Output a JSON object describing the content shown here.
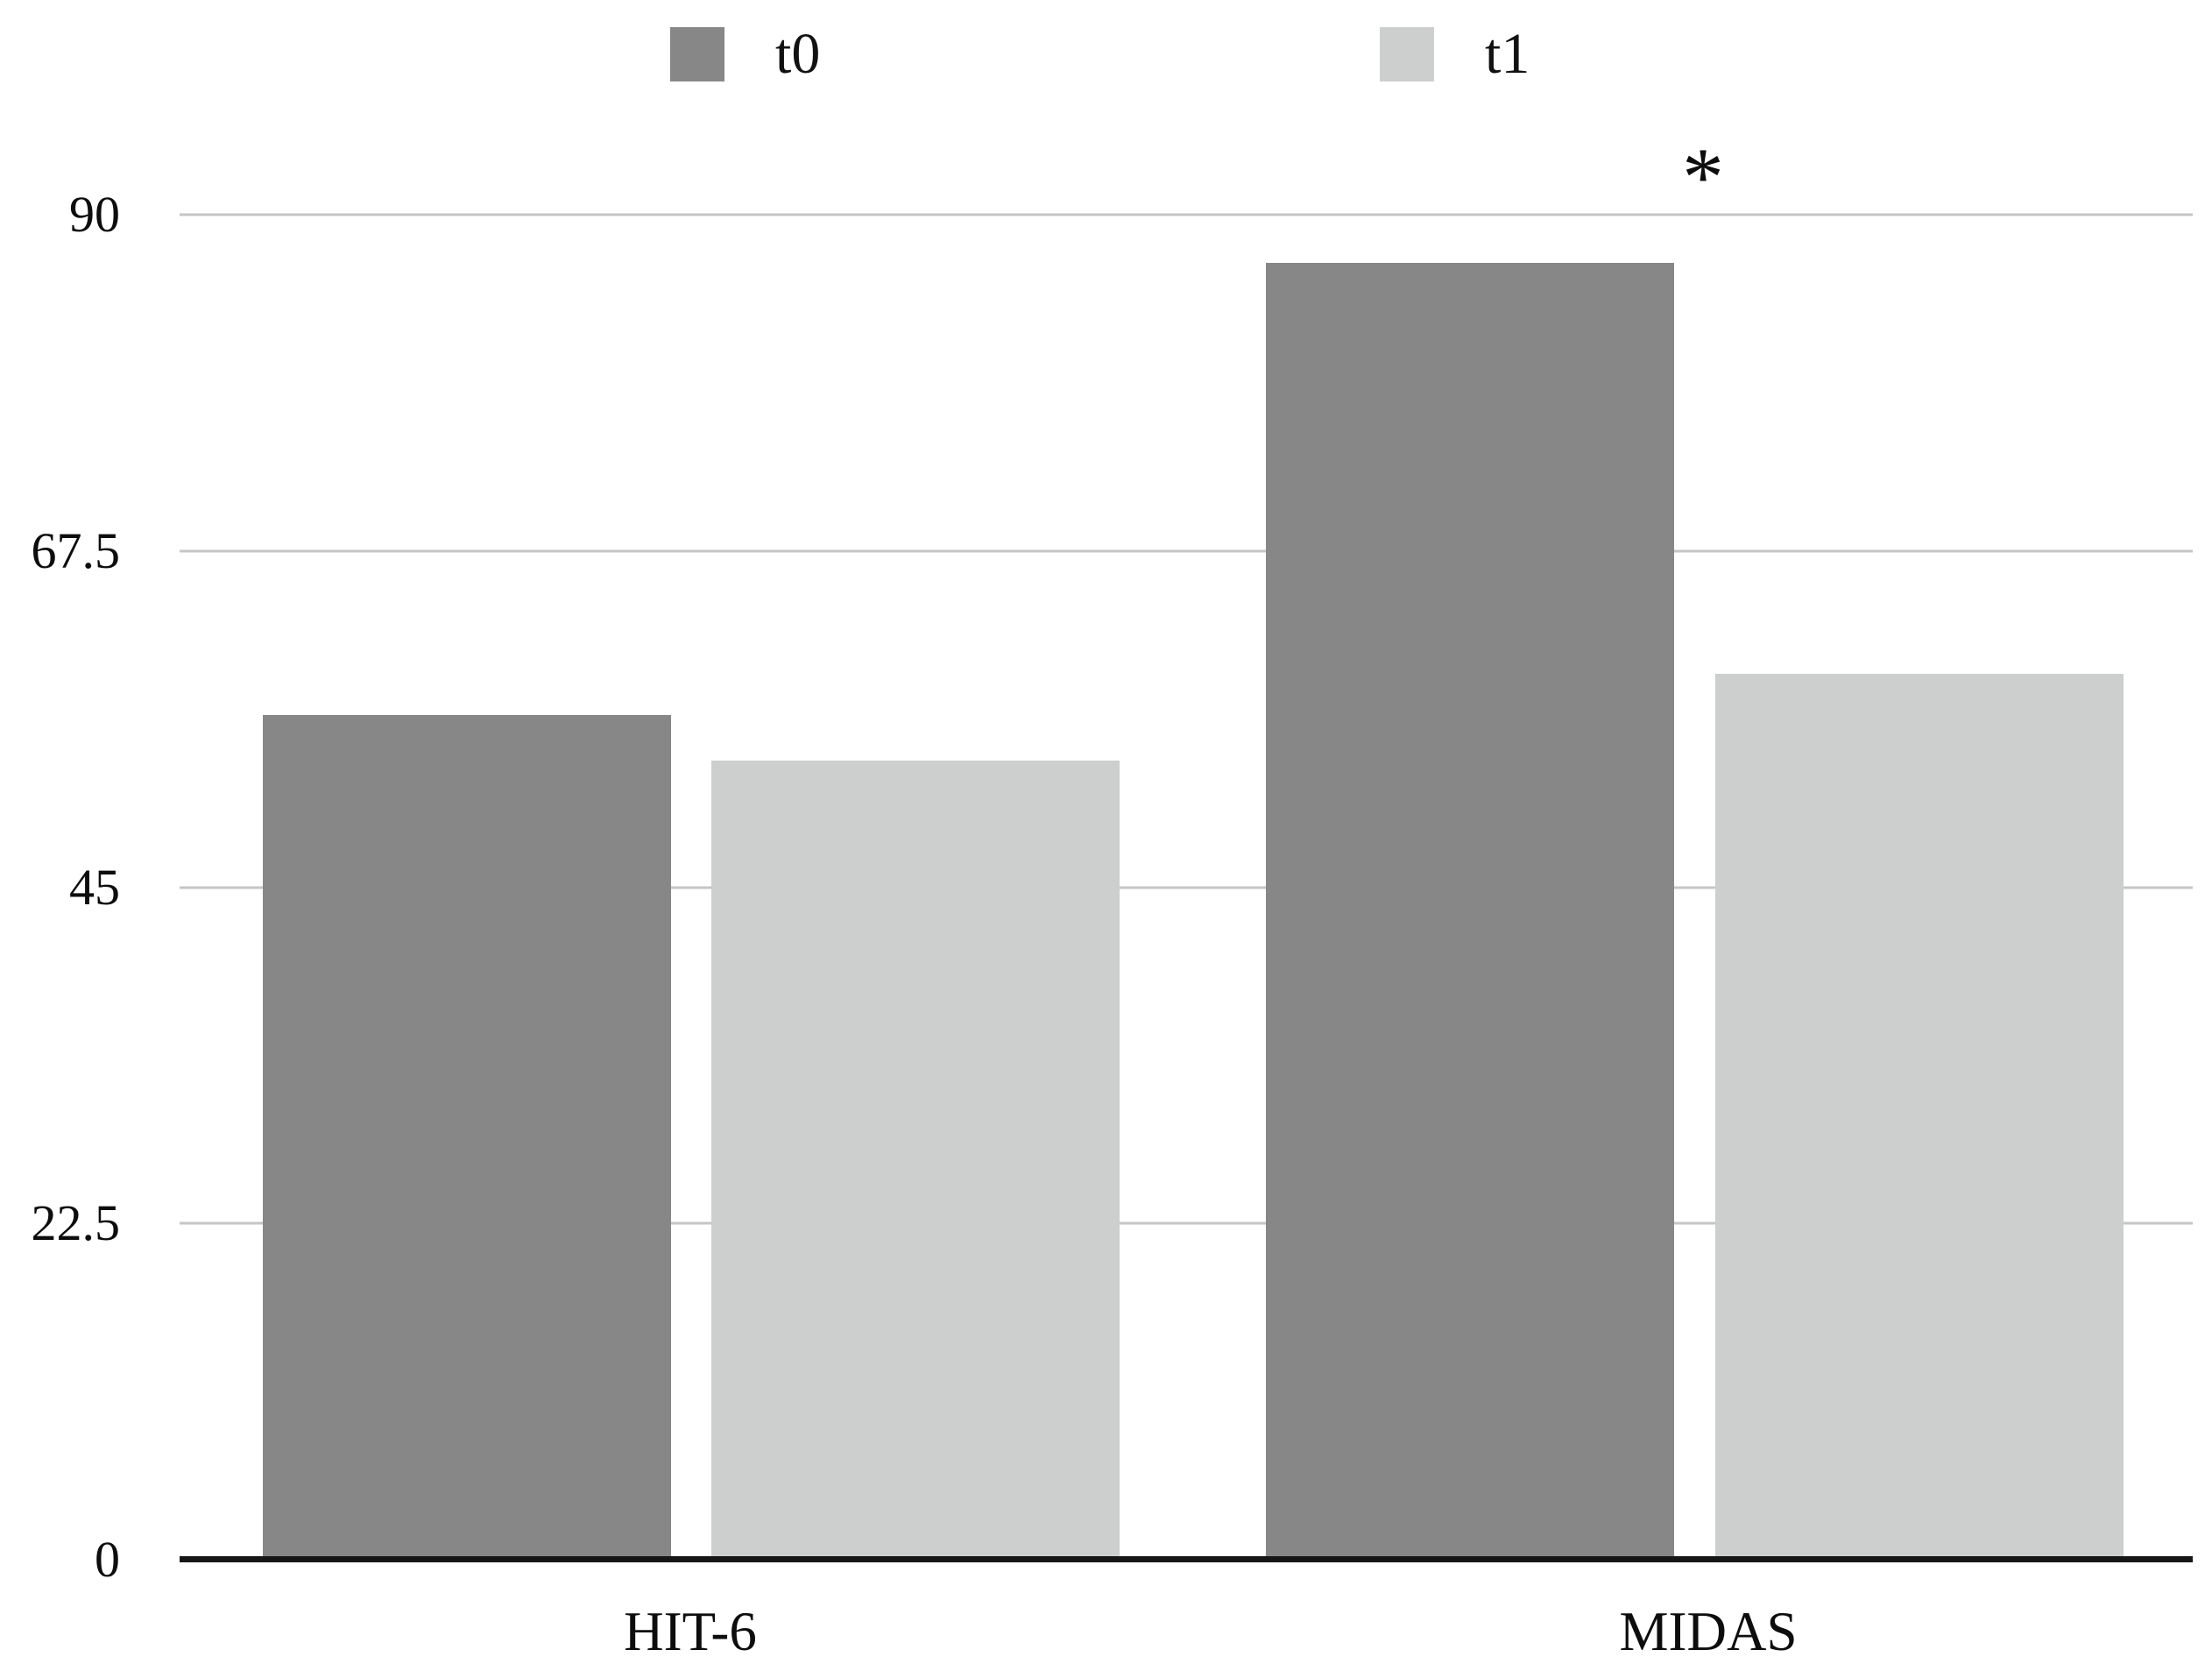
{
  "chart_data": {
    "type": "bar",
    "categories": [
      "HIT-6",
      "MIDAS"
    ],
    "series": [
      {
        "name": "t0",
        "values": [
          56.5,
          86.8
        ],
        "color": "#878787"
      },
      {
        "name": "t1",
        "values": [
          53.5,
          59.3
        ],
        "color": "#cccfce"
      }
    ],
    "title": "",
    "xlabel": "",
    "ylabel": "",
    "ylim": [
      0,
      90
    ],
    "yticks": [
      "90",
      "67.5",
      "45",
      "22.5",
      "0"
    ],
    "grid": true,
    "legend_position": "top",
    "annotations": [
      {
        "text": "*",
        "category": "MIDAS",
        "series": "t0"
      }
    ],
    "colors": {
      "gridline": "#c6c6c6",
      "axis_line": "#161616",
      "text": "#0d0d0d",
      "background": "#ffffff"
    }
  }
}
